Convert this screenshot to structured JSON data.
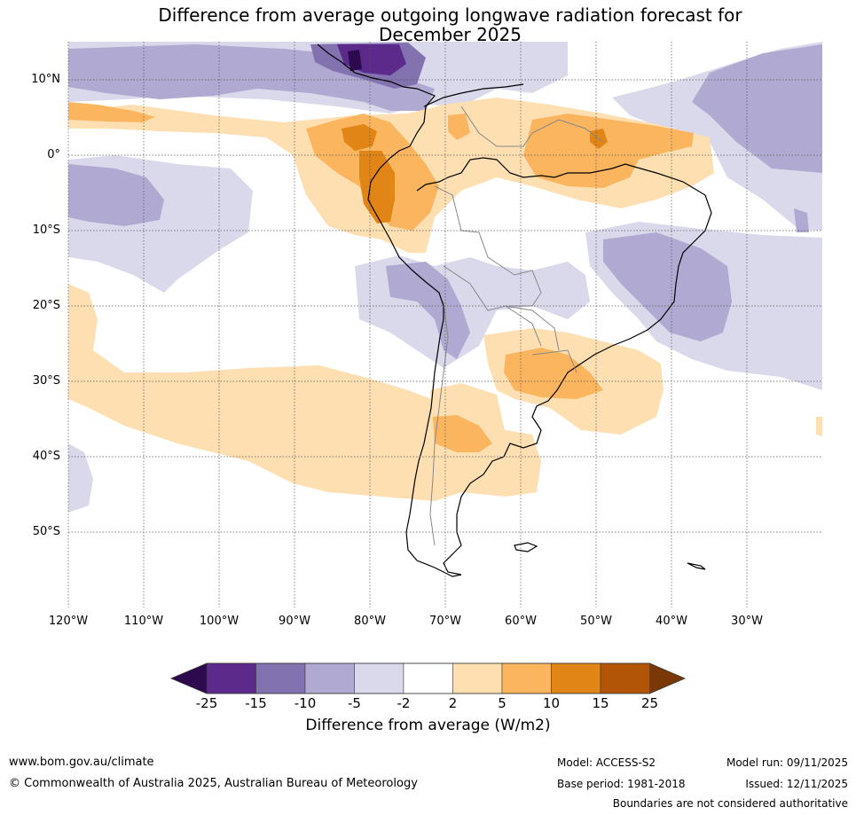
{
  "title": {
    "line1": "Difference from average outgoing longwave radiation forecast for",
    "line2": "December 2025"
  },
  "lat_labels": [
    "10°N",
    "0°",
    "10°S",
    "20°S",
    "30°S",
    "40°S",
    "50°S"
  ],
  "lon_labels": [
    "120°W",
    "110°W",
    "100°W",
    "90°W",
    "80°W",
    "70°W",
    "60°W",
    "50°W",
    "40°W",
    "30°W"
  ],
  "colorbar": {
    "colors": [
      "#2d0a4e",
      "#5b2a8a",
      "#8272b0",
      "#b0a9d2",
      "#d9d9eb",
      "#ffffff",
      "#fddfb2",
      "#fbb55f",
      "#e08516",
      "#b35507",
      "#7a3807"
    ],
    "labels": [
      "-25",
      "-15",
      "-10",
      "-5",
      "-2",
      "2",
      "5",
      "10",
      "15",
      "25"
    ],
    "title": "Difference from average (W/m2)"
  },
  "footer": {
    "url": "www.bom.gov.au/climate",
    "copyright": "© Commonwealth of Australia 2025, Australian Bureau of Meteorology",
    "model": "Model: ACCESS-S2",
    "base_period": "Base period: 1981-2018",
    "model_run": "Model run: 09/11/2025",
    "issued": "Issued: 12/11/2025",
    "disclaimer": "Boundaries are not considered authoritative"
  }
}
